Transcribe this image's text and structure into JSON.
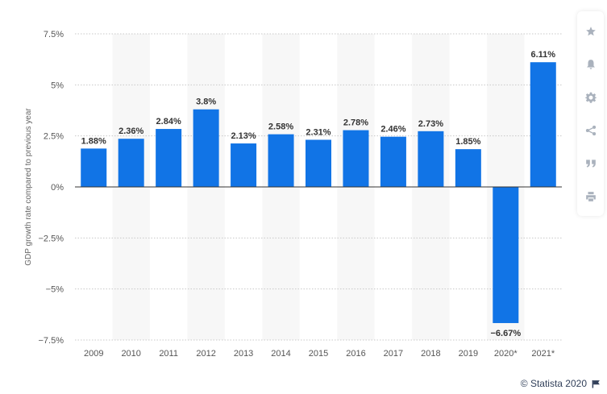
{
  "chart_data": {
    "type": "bar",
    "ylabel": "GDP growth rate compared to previous year",
    "xlabel": "",
    "title": "",
    "categories": [
      "2009",
      "2010",
      "2011",
      "2012",
      "2013",
      "2014",
      "2015",
      "2016",
      "2017",
      "2018",
      "2019",
      "2020*",
      "2021*"
    ],
    "values": [
      1.88,
      2.36,
      2.84,
      3.8,
      2.13,
      2.58,
      2.31,
      2.78,
      2.46,
      2.73,
      1.85,
      -6.67,
      6.11
    ],
    "value_labels": [
      "1.88%",
      "2.36%",
      "2.84%",
      "3.8%",
      "2.13%",
      "2.58%",
      "2.31%",
      "2.78%",
      "2.46%",
      "2.73%",
      "1.85%",
      "−6.67%",
      "6.11%"
    ],
    "ylim": [
      -7.5,
      7.5
    ],
    "yticks": [
      7.5,
      5,
      2.5,
      0,
      -2.5,
      -5,
      -7.5
    ],
    "ytick_labels": [
      "7.5%",
      "5%",
      "2.5%",
      "0%",
      "−2.5%",
      "−5%",
      "−7.5%"
    ],
    "grid": true,
    "bar_color": "#1174e6"
  },
  "toolbar": [
    {
      "icon": "star-icon"
    },
    {
      "icon": "bell-icon"
    },
    {
      "icon": "gear-icon"
    },
    {
      "icon": "share-icon"
    },
    {
      "icon": "quote-icon"
    },
    {
      "icon": "print-icon"
    }
  ],
  "credit": {
    "text": "© Statista 2020",
    "icon": "flag-icon"
  },
  "colors": {
    "bar": "#1174e6",
    "band": "#f7f7f7",
    "text": "#333333",
    "axis_text": "#555555",
    "icon": "#aab2bd"
  }
}
